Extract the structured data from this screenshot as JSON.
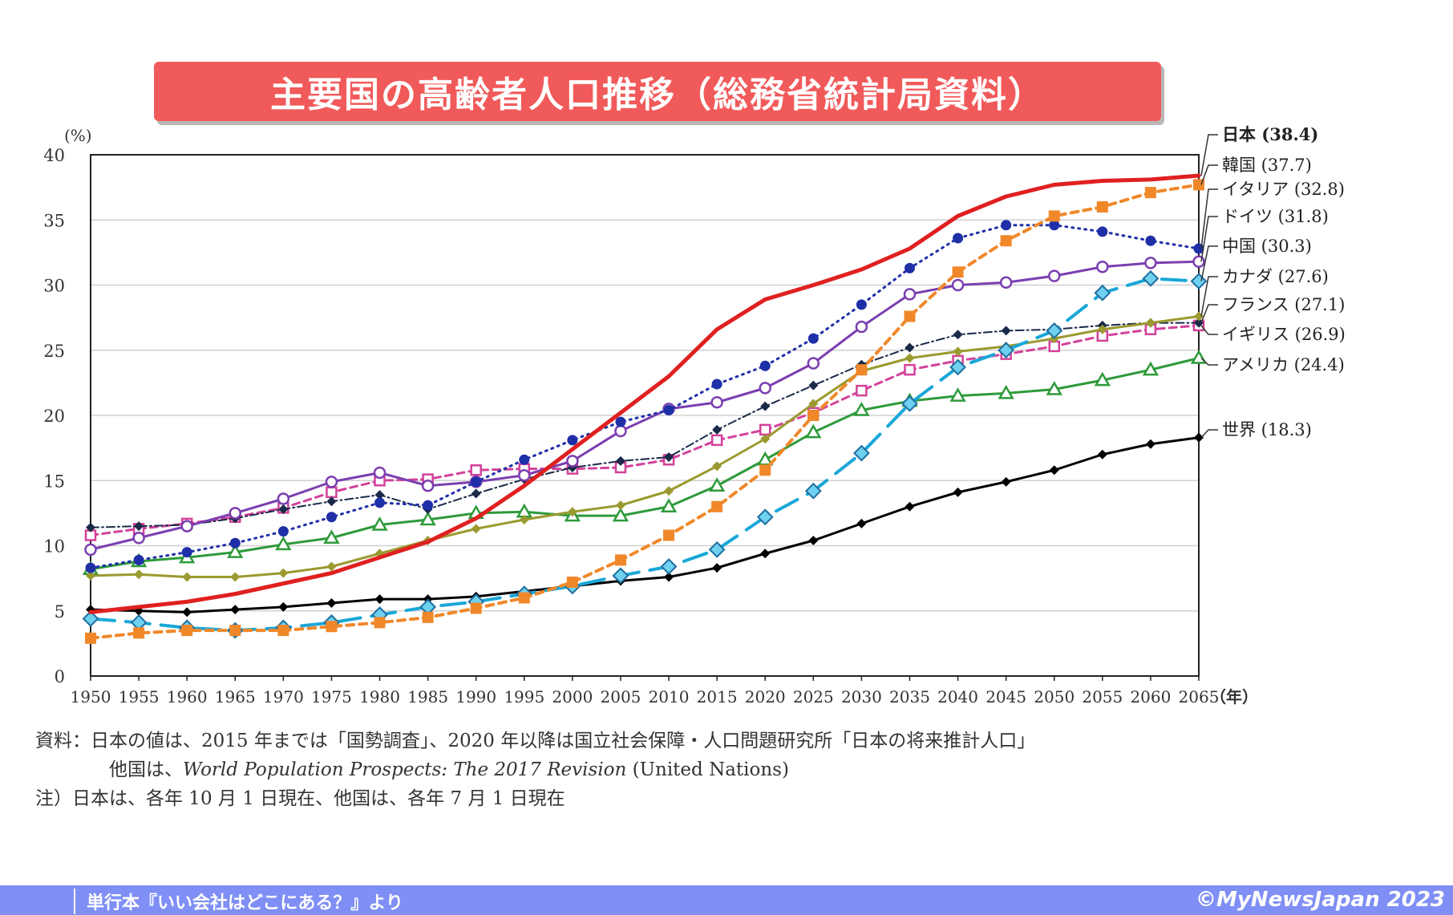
{
  "title": "主要国の高齢者人口推移（総務省統計局資料）",
  "chart_data": {
    "type": "line",
    "ylabel": "(%)",
    "xunit": "（年）",
    "ylim": [
      0,
      40
    ],
    "yticks": [
      0,
      5,
      10,
      15,
      20,
      25,
      30,
      35,
      40
    ],
    "x": [
      1950,
      1955,
      1960,
      1965,
      1970,
      1975,
      1980,
      1985,
      1990,
      1995,
      2000,
      2005,
      2010,
      2015,
      2020,
      2025,
      2030,
      2035,
      2040,
      2045,
      2050,
      2055,
      2060,
      2065
    ],
    "grid": "horizontal",
    "series": [
      {
        "name": "日本",
        "end_label": "(38.4)",
        "color": "#e02020",
        "marker": "none",
        "dash": "",
        "width": 5,
        "values": [
          4.9,
          5.3,
          5.7,
          6.3,
          7.1,
          7.9,
          9.1,
          10.3,
          12.1,
          14.6,
          17.4,
          20.2,
          23.0,
          26.6,
          28.9,
          30.0,
          31.2,
          32.8,
          35.3,
          36.8,
          37.7,
          38.0,
          38.1,
          38.4
        ]
      },
      {
        "name": "韓国",
        "end_label": "(37.7)",
        "color": "#f0882a",
        "marker": "square",
        "dash": "9,7",
        "width": 4,
        "values": [
          2.9,
          3.3,
          3.5,
          3.5,
          3.5,
          3.8,
          4.1,
          4.5,
          5.2,
          6.0,
          7.2,
          8.9,
          10.8,
          13.0,
          15.8,
          20.0,
          23.5,
          27.6,
          31.0,
          33.4,
          35.3,
          36.0,
          37.1,
          37.7
        ]
      },
      {
        "name": "イタリア",
        "end_label": "(32.8)",
        "color": "#1f2fa8",
        "marker": "dot",
        "dash": "2,6",
        "width": 3,
        "values": [
          8.3,
          8.9,
          9.5,
          10.2,
          11.1,
          12.2,
          13.3,
          13.1,
          14.9,
          16.6,
          18.1,
          19.5,
          20.4,
          22.4,
          23.8,
          25.9,
          28.5,
          31.3,
          33.6,
          34.6,
          34.6,
          34.1,
          33.4,
          32.8
        ]
      },
      {
        "name": "ドイツ",
        "end_label": "(31.8)",
        "color": "#7b3fb0",
        "marker": "circle-open",
        "dash": "",
        "width": 3,
        "values": [
          9.7,
          10.6,
          11.5,
          12.5,
          13.6,
          14.9,
          15.6,
          14.6,
          14.9,
          15.4,
          16.5,
          18.8,
          20.5,
          21.0,
          22.1,
          24.0,
          26.8,
          29.3,
          30.0,
          30.2,
          30.7,
          31.4,
          31.7,
          31.8
        ]
      },
      {
        "name": "中国",
        "end_label": "(30.3)",
        "color": "#1aa7d8",
        "marker": "diamond",
        "dash": "30,14",
        "width": 4,
        "values": [
          4.4,
          4.1,
          3.7,
          3.5,
          3.7,
          4.1,
          4.7,
          5.3,
          5.7,
          6.3,
          6.9,
          7.7,
          8.4,
          9.7,
          12.2,
          14.2,
          17.1,
          20.9,
          23.7,
          25.0,
          26.5,
          29.4,
          30.5,
          30.3
        ]
      },
      {
        "name": "カナダ",
        "end_label": "(27.6)",
        "color": "#9b9a30",
        "marker": "diamond-small",
        "dash": "",
        "width": 3,
        "values": [
          7.7,
          7.8,
          7.6,
          7.6,
          7.9,
          8.4,
          9.4,
          10.4,
          11.3,
          12.0,
          12.6,
          13.1,
          14.2,
          16.1,
          18.2,
          20.9,
          23.4,
          24.4,
          24.9,
          25.3,
          25.9,
          26.6,
          27.1,
          27.6
        ]
      },
      {
        "name": "フランス",
        "end_label": "(27.1)",
        "color": "#1a2a48",
        "marker": "diamond-small",
        "dash": "10,4,2,4",
        "width": 2,
        "values": [
          11.4,
          11.5,
          11.6,
          12.1,
          12.8,
          13.4,
          13.9,
          12.8,
          14.0,
          15.1,
          16.0,
          16.5,
          16.8,
          18.9,
          20.7,
          22.3,
          23.9,
          25.2,
          26.2,
          26.5,
          26.6,
          26.9,
          27.1,
          27.1
        ]
      },
      {
        "name": "イギリス",
        "end_label": "(26.9)",
        "color": "#d2429a",
        "marker": "square-open",
        "dash": "9,6",
        "width": 3,
        "values": [
          10.8,
          11.3,
          11.7,
          12.2,
          12.9,
          14.1,
          15.0,
          15.1,
          15.8,
          15.9,
          15.9,
          16.0,
          16.6,
          18.1,
          18.9,
          20.2,
          21.9,
          23.5,
          24.2,
          24.7,
          25.3,
          26.1,
          26.6,
          26.9
        ]
      },
      {
        "name": "アメリカ",
        "end_label": "(24.4)",
        "color": "#2e9a3a",
        "marker": "triangle-open",
        "dash": "",
        "width": 3,
        "values": [
          8.2,
          8.8,
          9.1,
          9.5,
          10.1,
          10.6,
          11.6,
          12.0,
          12.5,
          12.6,
          12.3,
          12.3,
          13.0,
          14.6,
          16.6,
          18.7,
          20.4,
          21.1,
          21.5,
          21.7,
          22.0,
          22.7,
          23.5,
          24.4
        ]
      },
      {
        "name": "世界",
        "end_label": "(18.3)",
        "color": "#000000",
        "marker": "diamond-small",
        "dash": "",
        "width": 3,
        "values": [
          5.1,
          5.0,
          4.9,
          5.1,
          5.3,
          5.6,
          5.9,
          5.9,
          6.1,
          6.5,
          6.9,
          7.3,
          7.6,
          8.3,
          9.4,
          10.4,
          11.7,
          13.0,
          14.1,
          14.9,
          15.8,
          17.0,
          17.8,
          18.3
        ]
      }
    ]
  },
  "notes": {
    "line1": "資料：日本の値は、2015 年までは「国勢調査」、2020 年以降は国立社会保障・人口問題研究所「日本の将来推計人口」",
    "line2_prefix": "他国は、",
    "line2_italic": "World Population Prospects: The 2017 Revision",
    "line2_suffix": " (United Nations)",
    "line3": "注）日本は、各年 10 月 1 日現在、他国は、各年 7 月 1 日現在"
  },
  "footer": {
    "source": "単行本『いい会社はどこにある？』より",
    "copyright": "©MyNewsJapan 2023"
  },
  "colors": {
    "banner": "#f15a5a",
    "footer": "#7f8ff5"
  }
}
